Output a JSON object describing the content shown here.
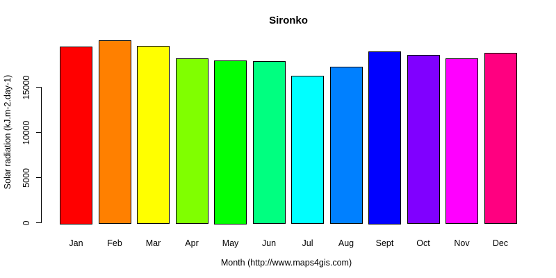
{
  "title": "Sironko",
  "chart_data": {
    "type": "bar",
    "title": "Sironko",
    "xlabel": "Month (http://www.maps4gis.com)",
    "ylabel": "Solar radiation (kJ.m-2.day-1)",
    "categories": [
      "Jan",
      "Feb",
      "Mar",
      "Apr",
      "May",
      "Jun",
      "Jul",
      "Aug",
      "Sept",
      "Oct",
      "Nov",
      "Dec"
    ],
    "values": [
      19500,
      20200,
      19600,
      18200,
      18000,
      17900,
      16300,
      17300,
      19000,
      18600,
      18200,
      18800
    ],
    "bar_colors": [
      "#FF0000",
      "#FF8000",
      "#FFFF00",
      "#80FF00",
      "#00FF00",
      "#00FF80",
      "#00FFFF",
      "#0080FF",
      "#0000FF",
      "#8000FF",
      "#FF00FF",
      "#FF0080"
    ],
    "bar_border_color": "#000000",
    "yticks": [
      0,
      5000,
      10000,
      15000
    ],
    "ylim": [
      0,
      20500
    ],
    "grid": false,
    "legend": "none",
    "background": "#FFFFFF"
  }
}
